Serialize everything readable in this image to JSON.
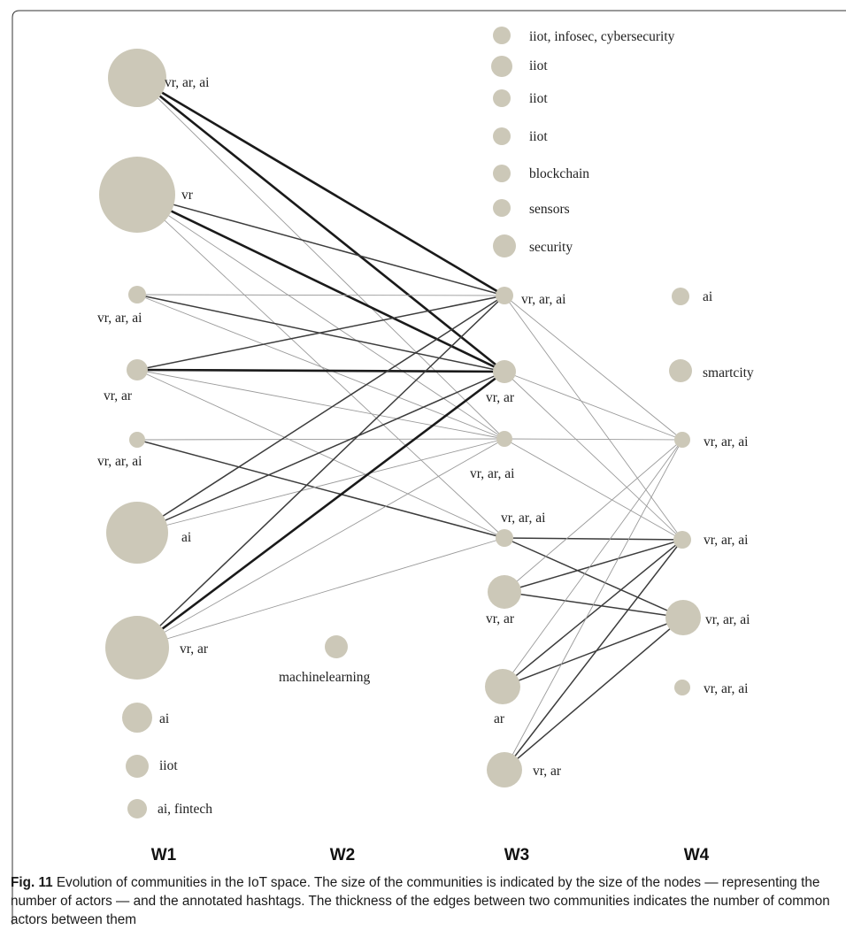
{
  "columns": [
    "W1",
    "W2",
    "W3",
    "W4"
  ],
  "nodes": [
    {
      "id": "w1_1",
      "label": "vr, ar, ai",
      "size": 5
    },
    {
      "id": "w1_2",
      "label": "vr",
      "size": 6
    },
    {
      "id": "w1_3",
      "label": "vr, ar, ai",
      "size": 1
    },
    {
      "id": "w1_4",
      "label": "vr, ar",
      "size": 1
    },
    {
      "id": "w1_5",
      "label": "vr, ar, ai",
      "size": 1
    },
    {
      "id": "w1_6",
      "label": "ai",
      "size": 5
    },
    {
      "id": "w1_7",
      "label": "vr, ar",
      "size": 5
    },
    {
      "id": "w1_8",
      "label": "ai",
      "size": 2
    },
    {
      "id": "w1_9",
      "label": "iiot",
      "size": 1
    },
    {
      "id": "w1_10",
      "label": "ai, fintech",
      "size": 1
    },
    {
      "id": "w2_1",
      "label": "machinelearning",
      "size": 1
    },
    {
      "id": "w3_1",
      "label": "iiot, infosec, cybersecurity",
      "size": 1
    },
    {
      "id": "w3_2",
      "label": "iiot",
      "size": 1
    },
    {
      "id": "w3_3",
      "label": "iiot",
      "size": 1
    },
    {
      "id": "w3_4",
      "label": "iiot",
      "size": 1
    },
    {
      "id": "w3_5",
      "label": "blockchain",
      "size": 1
    },
    {
      "id": "w3_6",
      "label": "sensors",
      "size": 1
    },
    {
      "id": "w3_7",
      "label": "security",
      "size": 1
    },
    {
      "id": "w3_8",
      "label": "vr, ar, ai",
      "size": 1
    },
    {
      "id": "w3_9",
      "label": "vr, ar",
      "size": 1
    },
    {
      "id": "w3_10",
      "label": "vr, ar, ai",
      "size": 1
    },
    {
      "id": "w3_11",
      "label": "vr, ar, ai",
      "size": 1
    },
    {
      "id": "w3_12",
      "label": "vr, ar",
      "size": 2
    },
    {
      "id": "w3_13",
      "label": "ar",
      "size": 2
    },
    {
      "id": "w3_14",
      "label": "vr, ar",
      "size": 2
    },
    {
      "id": "w4_1",
      "label": "ai",
      "size": 1
    },
    {
      "id": "w4_2",
      "label": "smartcity",
      "size": 1
    },
    {
      "id": "w4_3",
      "label": "vr, ar, ai",
      "size": 1
    },
    {
      "id": "w4_4",
      "label": "vr, ar, ai",
      "size": 1
    },
    {
      "id": "w4_5",
      "label": "vr, ar, ai",
      "size": 2
    },
    {
      "id": "w4_6",
      "label": "vr, ar, ai",
      "size": 1
    }
  ],
  "edges": [
    {
      "source": "w1_1",
      "target": "w3_8",
      "weight": 3
    },
    {
      "source": "w1_1",
      "target": "w3_9",
      "weight": 3
    },
    {
      "source": "w1_1",
      "target": "w3_10",
      "weight": 1
    },
    {
      "source": "w1_2",
      "target": "w3_8",
      "weight": 2
    },
    {
      "source": "w1_2",
      "target": "w3_9",
      "weight": 3
    },
    {
      "source": "w1_2",
      "target": "w3_10",
      "weight": 1
    },
    {
      "source": "w1_2",
      "target": "w3_11",
      "weight": 1
    },
    {
      "source": "w1_3",
      "target": "w3_8",
      "weight": 1
    },
    {
      "source": "w1_3",
      "target": "w3_9",
      "weight": 2
    },
    {
      "source": "w1_3",
      "target": "w3_10",
      "weight": 1
    },
    {
      "source": "w1_4",
      "target": "w3_8",
      "weight": 2
    },
    {
      "source": "w1_4",
      "target": "w3_9",
      "weight": 3
    },
    {
      "source": "w1_4",
      "target": "w3_10",
      "weight": 1
    },
    {
      "source": "w1_4",
      "target": "w3_11",
      "weight": 1
    },
    {
      "source": "w1_5",
      "target": "w3_10",
      "weight": 1
    },
    {
      "source": "w1_5",
      "target": "w3_11",
      "weight": 2
    },
    {
      "source": "w1_6",
      "target": "w3_8",
      "weight": 2
    },
    {
      "source": "w1_6",
      "target": "w3_9",
      "weight": 2
    },
    {
      "source": "w1_6",
      "target": "w3_10",
      "weight": 1
    },
    {
      "source": "w1_7",
      "target": "w3_8",
      "weight": 2
    },
    {
      "source": "w1_7",
      "target": "w3_9",
      "weight": 3
    },
    {
      "source": "w1_7",
      "target": "w3_10",
      "weight": 1
    },
    {
      "source": "w1_7",
      "target": "w3_11",
      "weight": 1
    },
    {
      "source": "w3_8",
      "target": "w4_3",
      "weight": 1
    },
    {
      "source": "w3_8",
      "target": "w4_4",
      "weight": 1
    },
    {
      "source": "w3_9",
      "target": "w4_3",
      "weight": 1
    },
    {
      "source": "w3_9",
      "target": "w4_4",
      "weight": 1
    },
    {
      "source": "w3_10",
      "target": "w4_3",
      "weight": 1
    },
    {
      "source": "w3_10",
      "target": "w4_4",
      "weight": 1
    },
    {
      "source": "w3_11",
      "target": "w4_4",
      "weight": 2
    },
    {
      "source": "w3_11",
      "target": "w4_5",
      "weight": 2
    },
    {
      "source": "w3_12",
      "target": "w4_3",
      "weight": 1
    },
    {
      "source": "w3_12",
      "target": "w4_4",
      "weight": 2
    },
    {
      "source": "w3_12",
      "target": "w4_5",
      "weight": 2
    },
    {
      "source": "w3_13",
      "target": "w4_3",
      "weight": 1
    },
    {
      "source": "w3_13",
      "target": "w4_4",
      "weight": 2
    },
    {
      "source": "w3_13",
      "target": "w4_5",
      "weight": 2
    },
    {
      "source": "w3_14",
      "target": "w4_3",
      "weight": 1
    },
    {
      "source": "w3_14",
      "target": "w4_4",
      "weight": 2
    },
    {
      "source": "w3_14",
      "target": "w4_5",
      "weight": 2
    }
  ],
  "caption": {
    "label": "Fig. 11",
    "text": "Evolution of communities in the IoT space. The size of the communities is indicated by the size of the nodes — representing the number of actors — and the annotated hashtags. The thickness of the edges between two communities indicates the number of common actors between them"
  },
  "colors": {
    "node": "#ccc8b8",
    "thin_edge": "#9a9a9a",
    "medium_edge": "#3c3c3c",
    "thick_edge": "#1a1a1a"
  }
}
